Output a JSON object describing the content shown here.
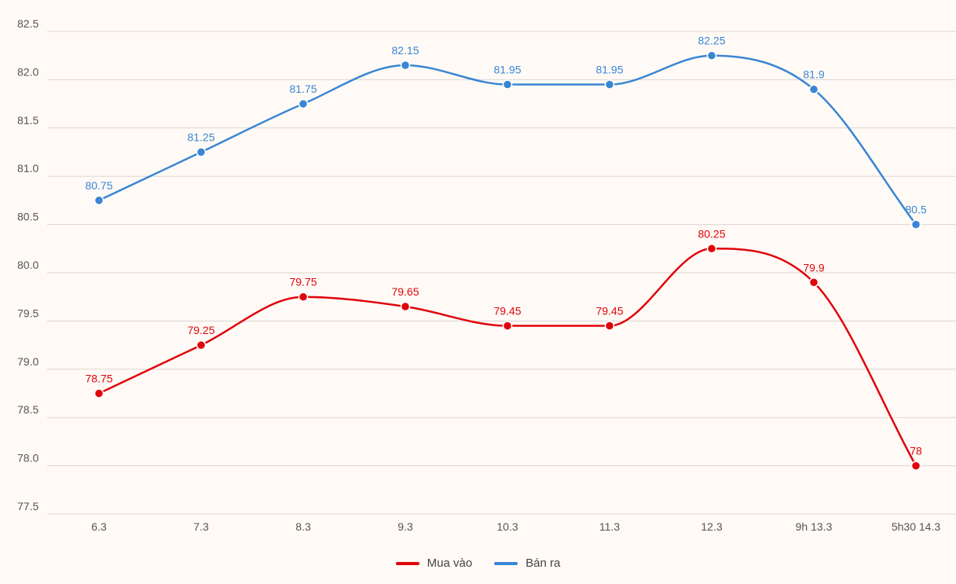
{
  "chart_data": {
    "type": "line",
    "categories": [
      "6.3",
      "7.3",
      "8.3",
      "9.3",
      "10.3",
      "11.3",
      "12.3",
      "9h 13.3",
      "5h30 14.3"
    ],
    "series": [
      {
        "name": "Mua vào",
        "color": "#e0040b",
        "values": [
          78.75,
          79.25,
          79.75,
          79.65,
          79.45,
          79.45,
          80.25,
          79.9,
          78
        ],
        "labels": [
          "78.75",
          "79.25",
          "79.75",
          "79.65",
          "79.45",
          "79.45",
          "80.25",
          "79.9",
          "78"
        ]
      },
      {
        "name": "Bán ra",
        "color": "#3a86d4",
        "values": [
          80.75,
          81.25,
          81.75,
          82.15,
          81.95,
          81.95,
          82.25,
          81.9,
          80.5
        ],
        "labels": [
          "80.75",
          "81.25",
          "81.75",
          "82.15",
          "81.95",
          "81.95",
          "82.25",
          "81.9",
          "80.5"
        ]
      }
    ],
    "yticks": [
      "77.5",
      "78.0",
      "78.5",
      "79.0",
      "79.5",
      "80.0",
      "80.5",
      "81.0",
      "81.5",
      "82.0",
      "82.5"
    ],
    "ylim": [
      77.5,
      82.5
    ],
    "grid": true,
    "legend": "bottom-center"
  }
}
